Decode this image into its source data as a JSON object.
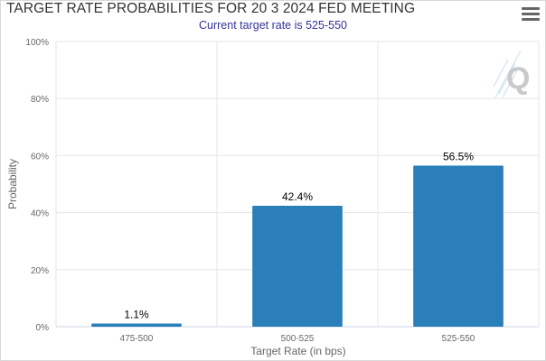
{
  "title": "TARGET RATE PROBABILITIES FOR 20 3 2024 FED MEETING",
  "subtitle": "Current target rate is 525-550",
  "menu_icon": "hamburger-menu-icon",
  "watermark_icon": "q-logo-icon",
  "chart_data": {
    "type": "bar",
    "categories": [
      "475-500",
      "500-525",
      "525-550"
    ],
    "values": [
      1.1,
      42.4,
      56.5
    ],
    "data_labels": [
      "1.1%",
      "42.4%",
      "56.5%"
    ],
    "yticks": [
      "0%",
      "20%",
      "40%",
      "60%",
      "80%",
      "100%"
    ],
    "ylim": [
      0,
      100
    ],
    "xlabel": "Target Rate (in bps)",
    "ylabel": "Probability",
    "grid": true,
    "bar_color": "#2a7fba"
  }
}
